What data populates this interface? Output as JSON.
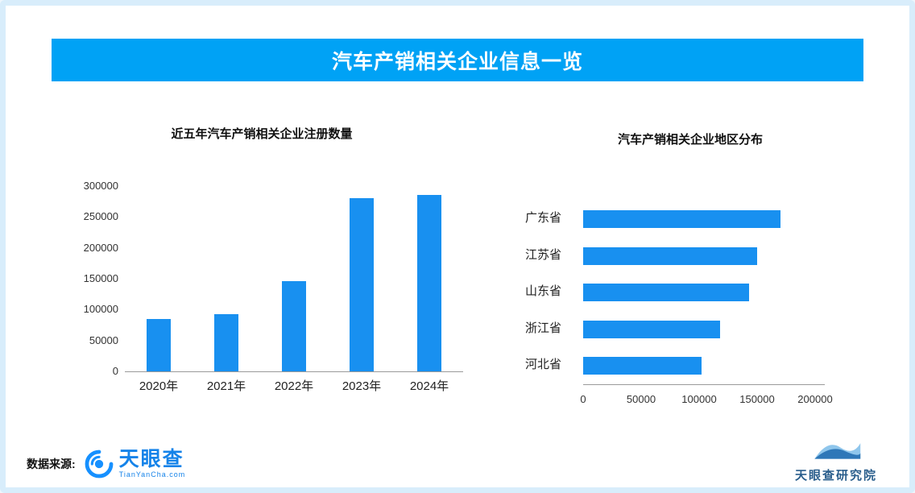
{
  "header": {
    "title": "汽车产销相关企业信息一览"
  },
  "chart_data": [
    {
      "type": "bar",
      "orientation": "vertical",
      "title": "近五年汽车产销相关企业注册数量",
      "categories": [
        "2020年",
        "2021年",
        "2022年",
        "2023年",
        "2024年"
      ],
      "values": [
        85000,
        92000,
        146000,
        280000,
        285000
      ],
      "ylim": [
        0,
        300000
      ],
      "yticks": [
        0,
        50000,
        100000,
        150000,
        200000,
        250000,
        300000
      ],
      "grid": false,
      "legend": false,
      "bar_color": "#1890F0"
    },
    {
      "type": "bar",
      "orientation": "horizontal",
      "title": "汽车产销相关企业地区分布",
      "categories": [
        "广东省",
        "江苏省",
        "山东省",
        "浙江省",
        "河北省"
      ],
      "values": [
        170000,
        150000,
        143000,
        118000,
        102000
      ],
      "xlim": [
        0,
        200000
      ],
      "xticks": [
        0,
        50000,
        100000,
        150000,
        200000
      ],
      "grid": false,
      "legend": false,
      "bar_color": "#1890F0"
    }
  ],
  "footer": {
    "source_label": "数据来源:",
    "brand_name": "天眼查",
    "brand_domain": "TianYanCha.com",
    "org_name": "天眼查研究院"
  },
  "colors": {
    "banner": "#00A2F5",
    "bar": "#1890F0",
    "brand_blue": "#1583E9",
    "org_blue": "#2A5E8C"
  }
}
